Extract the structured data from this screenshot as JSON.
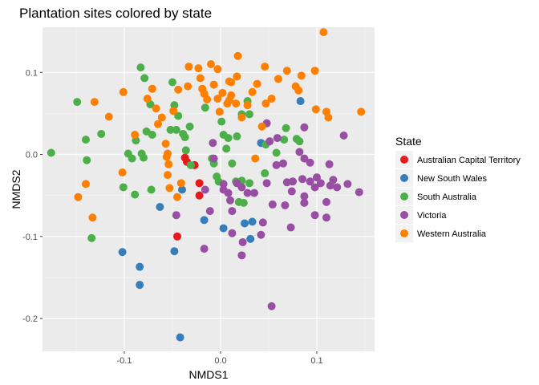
{
  "chart_data": {
    "type": "scatter",
    "title": "Plantation sites colored by state",
    "xlabel": "NMDS1",
    "ylabel": "NMDS2",
    "xlim": [
      -0.185,
      0.16
    ],
    "ylim": [
      -0.24,
      0.155
    ],
    "x_ticks": [
      -0.1,
      0.0,
      0.1
    ],
    "x_tick_labels": [
      "-0.1",
      "0.0",
      "0.1"
    ],
    "y_ticks": [
      -0.2,
      -0.1,
      0.0,
      0.1
    ],
    "y_tick_labels": [
      "-0.2",
      "-0.1",
      "0.0",
      "0.1"
    ],
    "grid": true,
    "legend": {
      "title": "State",
      "placement": "right"
    },
    "series": [
      {
        "name": "Australian Capital Territory",
        "color": "#e41a1c",
        "points": [
          [
            -0.037,
            -0.004
          ],
          [
            -0.027,
            -0.013
          ],
          [
            -0.045,
            -0.1
          ],
          [
            -0.022,
            -0.035
          ],
          [
            -0.022,
            -0.05
          ],
          [
            -0.035,
            -0.009
          ]
        ]
      },
      {
        "name": "New South Wales",
        "color": "#377eb8",
        "points": [
          [
            0.083,
            0.065
          ],
          [
            0.042,
            0.014
          ],
          [
            -0.04,
            -0.043
          ],
          [
            -0.063,
            -0.064
          ],
          [
            -0.017,
            -0.08
          ],
          [
            0.003,
            -0.09
          ],
          [
            0.025,
            -0.084
          ],
          [
            0.033,
            -0.082
          ],
          [
            0.031,
            -0.103
          ],
          [
            -0.102,
            -0.119
          ],
          [
            -0.048,
            -0.118
          ],
          [
            -0.084,
            -0.137
          ],
          [
            -0.084,
            -0.159
          ],
          [
            -0.042,
            -0.223
          ]
        ]
      },
      {
        "name": "South Australia",
        "color": "#4daf4a",
        "points": [
          [
            -0.176,
            0.002
          ],
          [
            -0.149,
            0.064
          ],
          [
            -0.14,
            0.018
          ],
          [
            -0.139,
            -0.007
          ],
          [
            -0.124,
            0.025
          ],
          [
            -0.101,
            -0.04
          ],
          [
            -0.096,
            0.001
          ],
          [
            -0.092,
            -0.005
          ],
          [
            -0.089,
            -0.049
          ],
          [
            -0.088,
            0.017
          ],
          [
            -0.083,
            0.106
          ],
          [
            -0.082,
            0.001
          ],
          [
            -0.08,
            -0.004
          ],
          [
            -0.079,
            0.093
          ],
          [
            -0.077,
            0.028
          ],
          [
            -0.073,
            0.061
          ],
          [
            -0.071,
            0.024
          ],
          [
            -0.072,
            -0.043
          ],
          [
            -0.052,
            0.03
          ],
          [
            -0.05,
            0.088
          ],
          [
            -0.048,
            0.06
          ],
          [
            -0.046,
            0.03
          ],
          [
            -0.044,
            0.047
          ],
          [
            -0.039,
            0.025
          ],
          [
            -0.037,
            0.021
          ],
          [
            -0.036,
            0.005
          ],
          [
            -0.032,
            0.034
          ],
          [
            -0.031,
            -0.013
          ],
          [
            -0.016,
            0.057
          ],
          [
            -0.009,
            -0.005
          ],
          [
            -0.007,
            -0.011
          ],
          [
            -0.004,
            -0.027
          ],
          [
            -0.002,
            -0.033
          ],
          [
            0.001,
            0.04
          ],
          [
            0.003,
            0.024
          ],
          [
            0.006,
            0.007
          ],
          [
            0.008,
            0.02
          ],
          [
            0.012,
            -0.011
          ],
          [
            0.016,
            -0.033
          ],
          [
            0.017,
            0.022
          ],
          [
            0.022,
            -0.032
          ],
          [
            0.022,
            0.049
          ],
          [
            0.028,
            0.065
          ],
          [
            0.03,
            0.049
          ],
          [
            0.046,
            -0.023
          ],
          [
            0.047,
            0.012
          ],
          [
            -0.134,
            -0.102
          ],
          [
            0.019,
            -0.058
          ],
          [
            0.024,
            -0.059
          ],
          [
            0.03,
            -0.035
          ],
          [
            0.058,
            0.002
          ],
          [
            0.066,
            0.018
          ],
          [
            0.068,
            0.032
          ],
          [
            0.079,
            0.019
          ],
          [
            0.082,
            0.016
          ]
        ]
      },
      {
        "name": "Victoria",
        "color": "#984ea3",
        "points": [
          [
            -0.008,
            0.014
          ],
          [
            -0.007,
            -0.005
          ],
          [
            0.003,
            -0.036
          ],
          [
            0.003,
            -0.043
          ],
          [
            0.017,
            -0.035
          ],
          [
            0.022,
            -0.04
          ],
          [
            0.028,
            -0.047
          ],
          [
            0.035,
            -0.047
          ],
          [
            0.048,
            -0.035
          ],
          [
            0.048,
            0.038
          ],
          [
            0.051,
            0.016
          ],
          [
            0.058,
            -0.013
          ],
          [
            0.059,
            0.02
          ],
          [
            0.065,
            -0.011
          ],
          [
            0.069,
            -0.034
          ],
          [
            0.075,
            -0.033
          ],
          [
            0.082,
            0.003
          ],
          [
            0.085,
            -0.03
          ],
          [
            0.087,
            -0.051
          ],
          [
            0.087,
            0.033
          ],
          [
            0.093,
            -0.033
          ],
          [
            0.098,
            -0.04
          ],
          [
            0.098,
            -0.074
          ],
          [
            0.104,
            -0.035
          ],
          [
            0.11,
            -0.058
          ],
          [
            0.11,
            -0.077
          ],
          [
            0.114,
            -0.038
          ],
          [
            0.117,
            -0.031
          ],
          [
            0.121,
            -0.04
          ],
          [
            0.128,
            0.023
          ],
          [
            0.132,
            -0.036
          ],
          [
            0.144,
            -0.046
          ],
          [
            0.087,
            -0.005
          ],
          [
            0.093,
            -0.01
          ],
          [
            0.087,
            -0.059
          ],
          [
            0.074,
            -0.045
          ],
          [
            0.067,
            -0.062
          ],
          [
            0.073,
            -0.089
          ],
          [
            0.054,
            -0.061
          ],
          [
            0.053,
            -0.185
          ],
          [
            0.044,
            -0.083
          ],
          [
            0.042,
            -0.098
          ],
          [
            0.023,
            -0.107
          ],
          [
            0.022,
            -0.123
          ],
          [
            0.012,
            -0.096
          ],
          [
            0.012,
            -0.069
          ],
          [
            0.01,
            -0.056
          ],
          [
            0.008,
            -0.047
          ],
          [
            -0.011,
            -0.069
          ],
          [
            -0.016,
            -0.043
          ],
          [
            -0.017,
            -0.115
          ],
          [
            -0.046,
            -0.074
          ],
          [
            0.113,
            -0.012
          ],
          [
            0.1,
            -0.028
          ]
        ]
      },
      {
        "name": "Western Australia",
        "color": "#ff7f00",
        "points": [
          [
            0.107,
            0.149
          ],
          [
            0.018,
            0.12
          ],
          [
            -0.033,
            0.107
          ],
          [
            -0.034,
            0.083
          ],
          [
            -0.023,
            0.105
          ],
          [
            -0.021,
            0.093
          ],
          [
            -0.019,
            0.08
          ],
          [
            -0.017,
            0.074
          ],
          [
            -0.014,
            0.067
          ],
          [
            -0.01,
            0.11
          ],
          [
            -0.007,
            0.085
          ],
          [
            -0.003,
            0.068
          ],
          [
            -0.003,
            0.104
          ],
          [
            -0.001,
            0.052
          ],
          [
            0.002,
            0.075
          ],
          [
            0.007,
            0.062
          ],
          [
            0.009,
            0.089
          ],
          [
            0.009,
            0.066
          ],
          [
            0.011,
            0.072
          ],
          [
            0.011,
            0.088
          ],
          [
            0.016,
            0.062
          ],
          [
            0.017,
            0.095
          ],
          [
            0.022,
            0.045
          ],
          [
            0.028,
            0.06
          ],
          [
            0.033,
            0.076
          ],
          [
            0.038,
            0.086
          ],
          [
            0.043,
            0.034
          ],
          [
            0.046,
            0.107
          ],
          [
            0.053,
            0.068
          ],
          [
            0.06,
            0.092
          ],
          [
            0.069,
            0.102
          ],
          [
            0.078,
            0.083
          ],
          [
            0.081,
            0.078
          ],
          [
            0.084,
            0.096
          ],
          [
            0.098,
            0.102
          ],
          [
            0.099,
            0.055
          ],
          [
            0.11,
            0.052
          ],
          [
            0.112,
            0.045
          ],
          [
            0.146,
            0.052
          ],
          [
            -0.101,
            0.076
          ],
          [
            -0.116,
            0.046
          ],
          [
            -0.131,
            0.064
          ],
          [
            -0.14,
            -0.036
          ],
          [
            -0.148,
            -0.052
          ],
          [
            -0.133,
            -0.077
          ],
          [
            -0.102,
            -0.022
          ],
          [
            -0.089,
            0.024
          ],
          [
            -0.076,
            0.068
          ],
          [
            -0.071,
            0.08
          ],
          [
            -0.067,
            0.056
          ],
          [
            -0.065,
            0.037
          ],
          [
            -0.061,
            0.045
          ],
          [
            -0.057,
            0.013
          ],
          [
            -0.056,
            -0.003
          ],
          [
            -0.054,
            -0.012
          ],
          [
            -0.055,
            -0.025
          ],
          [
            -0.053,
            -0.041
          ],
          [
            -0.055,
            0.001
          ],
          [
            -0.049,
            0.053
          ],
          [
            -0.044,
            0.079
          ],
          [
            -0.041,
            -0.035
          ],
          [
            -0.045,
            -0.052
          ],
          [
            0.036,
            -0.005
          ],
          [
            0.047,
            0.062
          ]
        ]
      }
    ]
  }
}
